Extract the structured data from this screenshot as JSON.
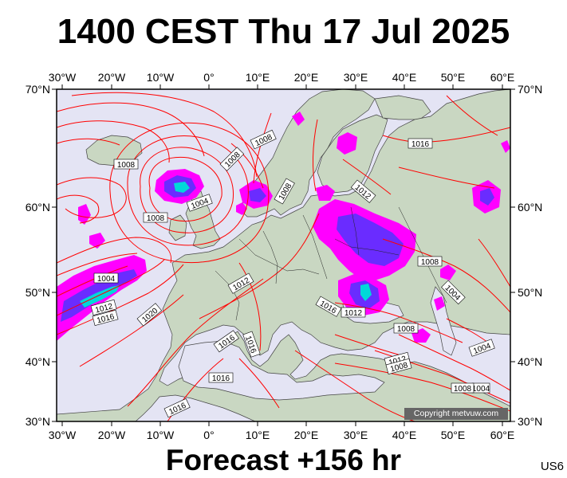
{
  "title": "1400 CEST Thu 17 Jul 2025",
  "footer": "Forecast +156 hr",
  "code": "US6",
  "copyright": "Copyright metvuw.com",
  "map": {
    "lon_labels": [
      "30°W",
      "20°W",
      "10°W",
      "0°",
      "10°E",
      "20°E",
      "30°E",
      "40°E",
      "50°E",
      "60°E"
    ],
    "lat_labels": [
      "70°N",
      "60°N",
      "50°N",
      "40°N",
      "30°N"
    ],
    "isobar_labels": [
      "1008",
      "1008",
      "1008",
      "1004",
      "1008",
      "1008",
      "1012",
      "1016",
      "1004",
      "1012",
      "1016",
      "1020",
      "1012",
      "1016",
      "1016",
      "1016",
      "1012",
      "1008",
      "1016",
      "1008",
      "1004",
      "1004",
      "1012",
      "1008",
      "1016",
      "1004",
      "1008"
    ],
    "colors": {
      "sea": "#e4e4f4",
      "land": "#c8d6c0",
      "isobar": "#ff0000",
      "precip_light": "#ff00ff",
      "precip_mid": "#6a2cff",
      "precip_heavy": "#00d8d8"
    }
  }
}
